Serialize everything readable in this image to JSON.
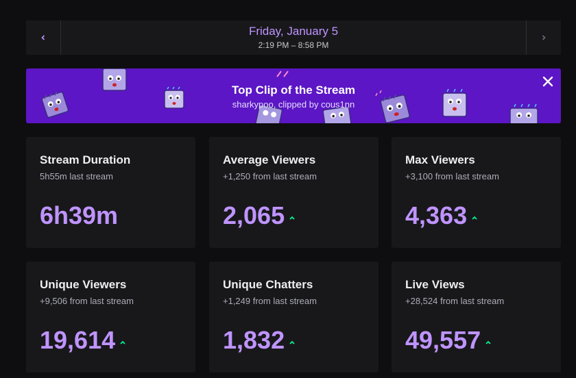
{
  "date_nav": {
    "title": "Friday, January 5",
    "time_range": "2:19 PM – 8:58 PM",
    "prev_icon": "chevron-left-icon",
    "next_icon": "chevron-right-icon"
  },
  "banner": {
    "title": "Top Clip of the Stream",
    "subtitle": "sharkypoo, clipped by cous1nn",
    "close_icon": "close-icon",
    "background": "#5c16c5"
  },
  "colors": {
    "accent": "#bf94ff",
    "up": "#00f593",
    "card_bg": "#18181b",
    "page_bg": "#0e0e10"
  },
  "stats": [
    {
      "title": "Stream Duration",
      "sub": "5h55m last stream",
      "value": "6h39m",
      "trend": "none"
    },
    {
      "title": "Average Viewers",
      "sub": "+1,250 from last stream",
      "value": "2,065",
      "trend": "up"
    },
    {
      "title": "Max Viewers",
      "sub": "+3,100 from last stream",
      "value": "4,363",
      "trend": "up"
    },
    {
      "title": "Unique Viewers",
      "sub": "+9,506 from last stream",
      "value": "19,614",
      "trend": "up"
    },
    {
      "title": "Unique Chatters",
      "sub": "+1,249 from last stream",
      "value": "1,832",
      "trend": "up"
    },
    {
      "title": "Live Views",
      "sub": "+28,524 from last stream",
      "value": "49,557",
      "trend": "up"
    }
  ]
}
